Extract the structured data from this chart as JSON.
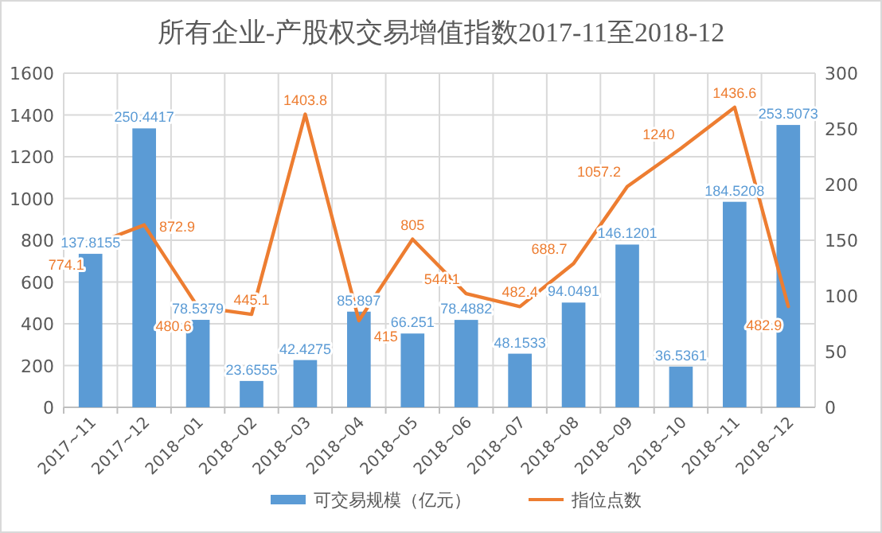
{
  "chart_data": {
    "type": "bar",
    "title": "所有企业-产股权交易增值指数2017-11至2018-12",
    "categories": [
      "2017~11",
      "2017~12",
      "2018~01",
      "2018~02",
      "2018~03",
      "2018~04",
      "2018~05",
      "2018~06",
      "2018~07",
      "2018~08",
      "2018~09",
      "2018~10",
      "2018~11",
      "2018~12"
    ],
    "series": [
      {
        "name": "可交易规模（亿元）",
        "axis": "y2",
        "color": "#5b9bd5",
        "values": [
          137.8155,
          250.4417,
          78.5379,
          23.6555,
          42.4275,
          85.897,
          66.251,
          78.4882,
          48.1533,
          94.0491,
          146.1201,
          36.5361,
          184.5208,
          253.5073
        ]
      },
      {
        "name": "指位点数",
        "type": "line",
        "color": "#ed7d31",
        "values": [
          774.1,
          872.9,
          480.6,
          445.1,
          1403.8,
          415,
          805,
          544.1,
          482.4,
          688.7,
          1057.2,
          1240,
          1436.6,
          482.9
        ]
      }
    ],
    "ylim": [
      0,
      1600
    ],
    "yticks": [
      0,
      200,
      400,
      600,
      800,
      1000,
      1200,
      1400,
      1600
    ],
    "y2lim": [
      0,
      300
    ],
    "y2ticks": [
      0,
      50,
      100,
      150,
      200,
      250,
      300
    ],
    "grid": true,
    "legend": "bottom",
    "data_labels": true
  }
}
